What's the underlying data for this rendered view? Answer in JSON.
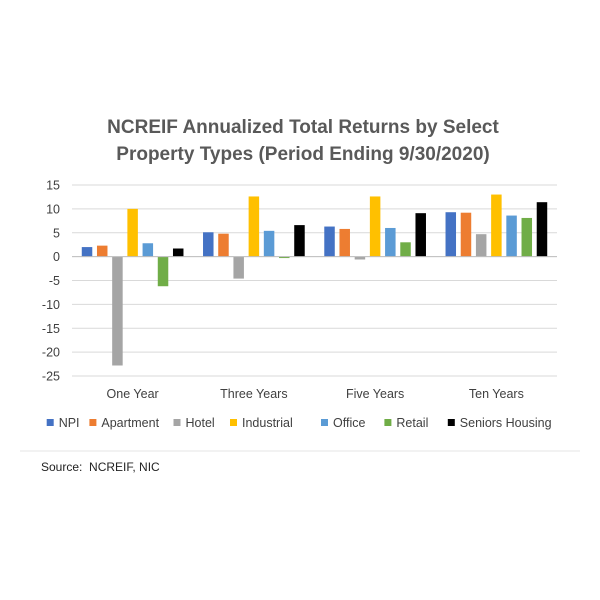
{
  "source": "Source:  NCREIF, NIC",
  "chart_data": {
    "type": "bar",
    "title_lines": [
      "NCREIF Annualized Total Returns by Select",
      "Property Types (Period Ending 9/30/2020)"
    ],
    "categories": [
      "One Year",
      "Three Years",
      "Five Years",
      "Ten Years"
    ],
    "ylim": [
      -25,
      15
    ],
    "yticks": [
      15,
      10,
      5,
      0,
      -5,
      -10,
      -15,
      -20,
      -25
    ],
    "grid": true,
    "legend_position": "bottom",
    "series": [
      {
        "name": "NPI",
        "color": "#4472C4",
        "values": [
          2.0,
          5.1,
          6.3,
          9.3
        ]
      },
      {
        "name": "Apartment",
        "color": "#ED7D31",
        "values": [
          2.3,
          4.8,
          5.8,
          9.2
        ]
      },
      {
        "name": "Hotel",
        "color": "#A5A5A5",
        "values": [
          -22.8,
          -4.6,
          -0.6,
          4.7
        ]
      },
      {
        "name": "Industrial",
        "color": "#FFC000",
        "values": [
          10.0,
          12.6,
          12.6,
          13.0
        ]
      },
      {
        "name": "Office",
        "color": "#5B9BD5",
        "values": [
          2.8,
          5.4,
          6.0,
          8.6
        ]
      },
      {
        "name": "Retail",
        "color": "#70AD47",
        "values": [
          -6.2,
          -0.3,
          3.0,
          8.1
        ]
      },
      {
        "name": "Seniors Housing",
        "color": "#000000",
        "values": [
          1.7,
          6.6,
          9.1,
          11.4
        ]
      }
    ]
  }
}
